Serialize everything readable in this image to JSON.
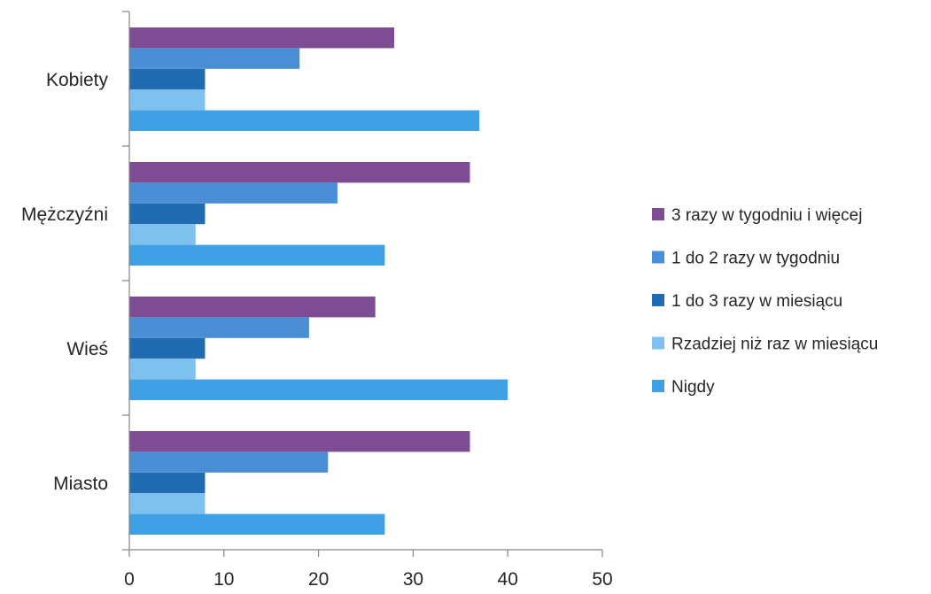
{
  "chart_data": {
    "type": "bar",
    "orientation": "horizontal",
    "title": "",
    "xlabel": "",
    "ylabel": "",
    "xlim": [
      0,
      50
    ],
    "x_ticks": [
      0,
      10,
      20,
      30,
      40,
      50
    ],
    "categories": [
      "Kobiety",
      "Mężczyźni",
      "Wieś",
      "Miasto"
    ],
    "series": [
      {
        "name": "3 razy w tygodniu i więcej",
        "color": "#7F4B93",
        "values": [
          28,
          36,
          26,
          36
        ]
      },
      {
        "name": "1 do 2 razy w tygodniu",
        "color": "#4A8FD6",
        "values": [
          18,
          22,
          19,
          21
        ]
      },
      {
        "name": "1 do 3 razy w miesiącu",
        "color": "#1F6CB3",
        "values": [
          8,
          8,
          8,
          8
        ]
      },
      {
        "name": "Rzadziej niż raz w miesiącu",
        "color": "#7EC0EE",
        "values": [
          8,
          7,
          7,
          8
        ]
      },
      {
        "name": "Nigdy",
        "color": "#40A0E6",
        "values": [
          37,
          27,
          40,
          27
        ]
      }
    ],
    "grid": false,
    "legend_position": "right"
  }
}
